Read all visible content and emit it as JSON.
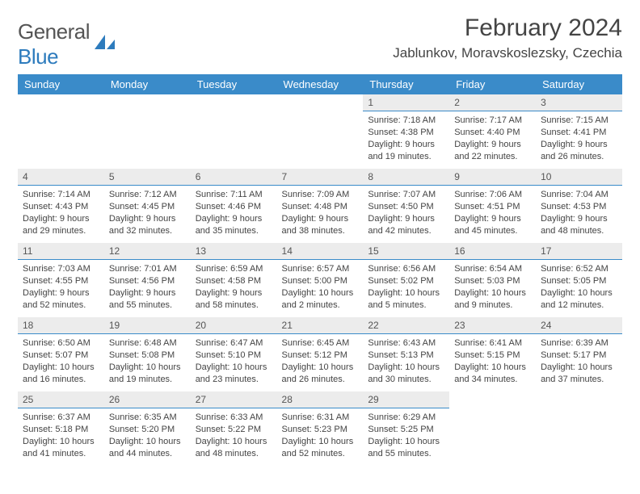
{
  "brand": {
    "text_a": "General",
    "text_b": "Blue"
  },
  "title": "February 2024",
  "location": "Jablunkov, Moravskoslezsky, Czechia",
  "colors": {
    "header_bg": "#3a8bc9",
    "header_fg": "#ffffff",
    "daynum_bg": "#ececec",
    "daynum_border": "#3a8bc9",
    "text": "#444444",
    "brand_gray": "#555555",
    "brand_blue": "#2d7bbd"
  },
  "fonts": {
    "title_size": 30,
    "location_size": 17,
    "header_size": 13,
    "cell_size": 11,
    "daynum_size": 12
  },
  "day_headers": [
    "Sunday",
    "Monday",
    "Tuesday",
    "Wednesday",
    "Thursday",
    "Friday",
    "Saturday"
  ],
  "weeks": [
    [
      null,
      null,
      null,
      null,
      {
        "n": "1",
        "sunrise": "7:18 AM",
        "sunset": "4:38 PM",
        "daylight": "9 hours and 19 minutes."
      },
      {
        "n": "2",
        "sunrise": "7:17 AM",
        "sunset": "4:40 PM",
        "daylight": "9 hours and 22 minutes."
      },
      {
        "n": "3",
        "sunrise": "7:15 AM",
        "sunset": "4:41 PM",
        "daylight": "9 hours and 26 minutes."
      }
    ],
    [
      {
        "n": "4",
        "sunrise": "7:14 AM",
        "sunset": "4:43 PM",
        "daylight": "9 hours and 29 minutes."
      },
      {
        "n": "5",
        "sunrise": "7:12 AM",
        "sunset": "4:45 PM",
        "daylight": "9 hours and 32 minutes."
      },
      {
        "n": "6",
        "sunrise": "7:11 AM",
        "sunset": "4:46 PM",
        "daylight": "9 hours and 35 minutes."
      },
      {
        "n": "7",
        "sunrise": "7:09 AM",
        "sunset": "4:48 PM",
        "daylight": "9 hours and 38 minutes."
      },
      {
        "n": "8",
        "sunrise": "7:07 AM",
        "sunset": "4:50 PM",
        "daylight": "9 hours and 42 minutes."
      },
      {
        "n": "9",
        "sunrise": "7:06 AM",
        "sunset": "4:51 PM",
        "daylight": "9 hours and 45 minutes."
      },
      {
        "n": "10",
        "sunrise": "7:04 AM",
        "sunset": "4:53 PM",
        "daylight": "9 hours and 48 minutes."
      }
    ],
    [
      {
        "n": "11",
        "sunrise": "7:03 AM",
        "sunset": "4:55 PM",
        "daylight": "9 hours and 52 minutes."
      },
      {
        "n": "12",
        "sunrise": "7:01 AM",
        "sunset": "4:56 PM",
        "daylight": "9 hours and 55 minutes."
      },
      {
        "n": "13",
        "sunrise": "6:59 AM",
        "sunset": "4:58 PM",
        "daylight": "9 hours and 58 minutes."
      },
      {
        "n": "14",
        "sunrise": "6:57 AM",
        "sunset": "5:00 PM",
        "daylight": "10 hours and 2 minutes."
      },
      {
        "n": "15",
        "sunrise": "6:56 AM",
        "sunset": "5:02 PM",
        "daylight": "10 hours and 5 minutes."
      },
      {
        "n": "16",
        "sunrise": "6:54 AM",
        "sunset": "5:03 PM",
        "daylight": "10 hours and 9 minutes."
      },
      {
        "n": "17",
        "sunrise": "6:52 AM",
        "sunset": "5:05 PM",
        "daylight": "10 hours and 12 minutes."
      }
    ],
    [
      {
        "n": "18",
        "sunrise": "6:50 AM",
        "sunset": "5:07 PM",
        "daylight": "10 hours and 16 minutes."
      },
      {
        "n": "19",
        "sunrise": "6:48 AM",
        "sunset": "5:08 PM",
        "daylight": "10 hours and 19 minutes."
      },
      {
        "n": "20",
        "sunrise": "6:47 AM",
        "sunset": "5:10 PM",
        "daylight": "10 hours and 23 minutes."
      },
      {
        "n": "21",
        "sunrise": "6:45 AM",
        "sunset": "5:12 PM",
        "daylight": "10 hours and 26 minutes."
      },
      {
        "n": "22",
        "sunrise": "6:43 AM",
        "sunset": "5:13 PM",
        "daylight": "10 hours and 30 minutes."
      },
      {
        "n": "23",
        "sunrise": "6:41 AM",
        "sunset": "5:15 PM",
        "daylight": "10 hours and 34 minutes."
      },
      {
        "n": "24",
        "sunrise": "6:39 AM",
        "sunset": "5:17 PM",
        "daylight": "10 hours and 37 minutes."
      }
    ],
    [
      {
        "n": "25",
        "sunrise": "6:37 AM",
        "sunset": "5:18 PM",
        "daylight": "10 hours and 41 minutes."
      },
      {
        "n": "26",
        "sunrise": "6:35 AM",
        "sunset": "5:20 PM",
        "daylight": "10 hours and 44 minutes."
      },
      {
        "n": "27",
        "sunrise": "6:33 AM",
        "sunset": "5:22 PM",
        "daylight": "10 hours and 48 minutes."
      },
      {
        "n": "28",
        "sunrise": "6:31 AM",
        "sunset": "5:23 PM",
        "daylight": "10 hours and 52 minutes."
      },
      {
        "n": "29",
        "sunrise": "6:29 AM",
        "sunset": "5:25 PM",
        "daylight": "10 hours and 55 minutes."
      },
      null,
      null
    ]
  ],
  "labels": {
    "sunrise": "Sunrise: ",
    "sunset": "Sunset: ",
    "daylight": "Daylight: "
  }
}
